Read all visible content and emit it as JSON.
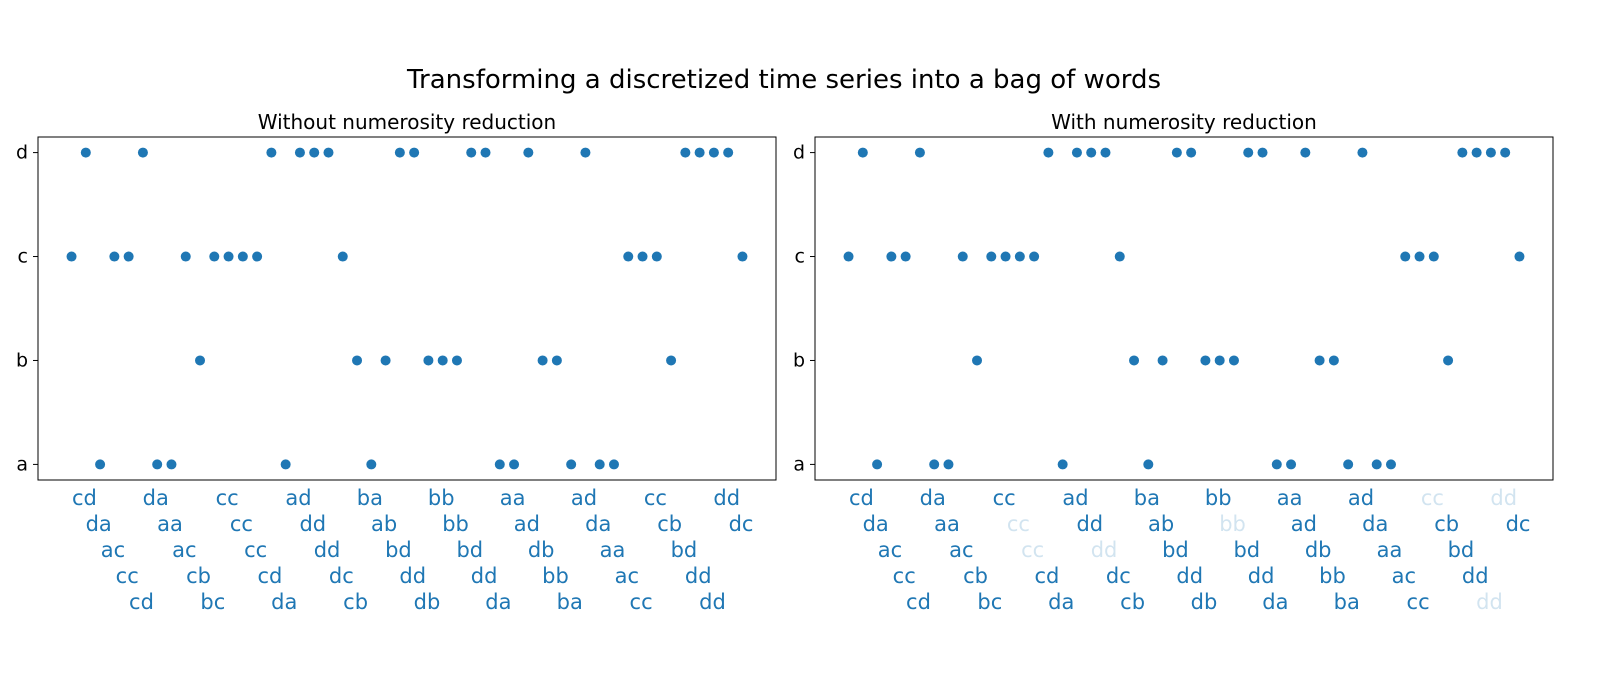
{
  "title": "Transforming a discretized time series into a bag of words",
  "chart_data": [
    {
      "type": "scatter",
      "title": "Without numerosity reduction",
      "color": "#1f77b4",
      "numerosity_reduction": false,
      "faded_alpha": 0.2,
      "xlim": [
        -2.35,
        49.35
      ],
      "ylim": [
        -0.15,
        3.15
      ],
      "yticks": [
        "a",
        "b",
        "c",
        "d"
      ],
      "x": [
        0,
        1,
        2,
        3,
        4,
        5,
        6,
        7,
        8,
        9,
        10,
        11,
        12,
        13,
        14,
        15,
        16,
        17,
        18,
        19,
        20,
        21,
        22,
        23,
        24,
        25,
        26,
        27,
        28,
        29,
        30,
        31,
        32,
        33,
        34,
        35,
        36,
        37,
        38,
        39,
        40,
        41,
        42,
        43,
        44,
        45,
        46,
        47
      ],
      "values": [
        "c",
        "d",
        "a",
        "c",
        "c",
        "d",
        "a",
        "a",
        "c",
        "b",
        "c",
        "c",
        "c",
        "c",
        "d",
        "a",
        "d",
        "d",
        "d",
        "c",
        "b",
        "a",
        "b",
        "d",
        "d",
        "b",
        "b",
        "b",
        "d",
        "d",
        "a",
        "a",
        "d",
        "b",
        "b",
        "a",
        "d",
        "a",
        "a",
        "c",
        "c",
        "c",
        "b",
        "d",
        "d",
        "d",
        "d",
        "c"
      ],
      "words": [
        "cd",
        "da",
        "ac",
        "cc",
        "cd",
        "da",
        "aa",
        "ac",
        "cb",
        "bc",
        "cc",
        "cc",
        "cc",
        "cd",
        "da",
        "ad",
        "dd",
        "dd",
        "dc",
        "cb",
        "ba",
        "ab",
        "bd",
        "dd",
        "db",
        "bb",
        "bb",
        "bd",
        "dd",
        "da",
        "aa",
        "ad",
        "db",
        "bb",
        "ba",
        "ad",
        "da",
        "aa",
        "ac",
        "cc",
        "cc",
        "cb",
        "bd",
        "dd",
        "dd",
        "dd",
        "dc"
      ]
    },
    {
      "type": "scatter",
      "title": "With numerosity reduction",
      "color": "#1f77b4",
      "numerosity_reduction": true,
      "faded_alpha": 0.2,
      "xlim": [
        -2.35,
        49.35
      ],
      "ylim": [
        -0.15,
        3.15
      ],
      "yticks": [
        "a",
        "b",
        "c",
        "d"
      ],
      "x": [
        0,
        1,
        2,
        3,
        4,
        5,
        6,
        7,
        8,
        9,
        10,
        11,
        12,
        13,
        14,
        15,
        16,
        17,
        18,
        19,
        20,
        21,
        22,
        23,
        24,
        25,
        26,
        27,
        28,
        29,
        30,
        31,
        32,
        33,
        34,
        35,
        36,
        37,
        38,
        39,
        40,
        41,
        42,
        43,
        44,
        45,
        46,
        47
      ],
      "values": [
        "c",
        "d",
        "a",
        "c",
        "c",
        "d",
        "a",
        "a",
        "c",
        "b",
        "c",
        "c",
        "c",
        "c",
        "d",
        "a",
        "d",
        "d",
        "d",
        "c",
        "b",
        "a",
        "b",
        "d",
        "d",
        "b",
        "b",
        "b",
        "d",
        "d",
        "a",
        "a",
        "d",
        "b",
        "b",
        "a",
        "d",
        "a",
        "a",
        "c",
        "c",
        "c",
        "b",
        "d",
        "d",
        "d",
        "d",
        "c"
      ],
      "words": [
        "cd",
        "da",
        "ac",
        "cc",
        "cd",
        "da",
        "aa",
        "ac",
        "cb",
        "bc",
        "cc",
        "cc",
        "cc",
        "cd",
        "da",
        "ad",
        "dd",
        "dd",
        "dc",
        "cb",
        "ba",
        "ab",
        "bd",
        "dd",
        "db",
        "bb",
        "bb",
        "bd",
        "dd",
        "da",
        "aa",
        "ad",
        "db",
        "bb",
        "ba",
        "ad",
        "da",
        "aa",
        "ac",
        "cc",
        "cc",
        "cb",
        "bd",
        "dd",
        "dd",
        "dd",
        "dc"
      ]
    }
  ]
}
